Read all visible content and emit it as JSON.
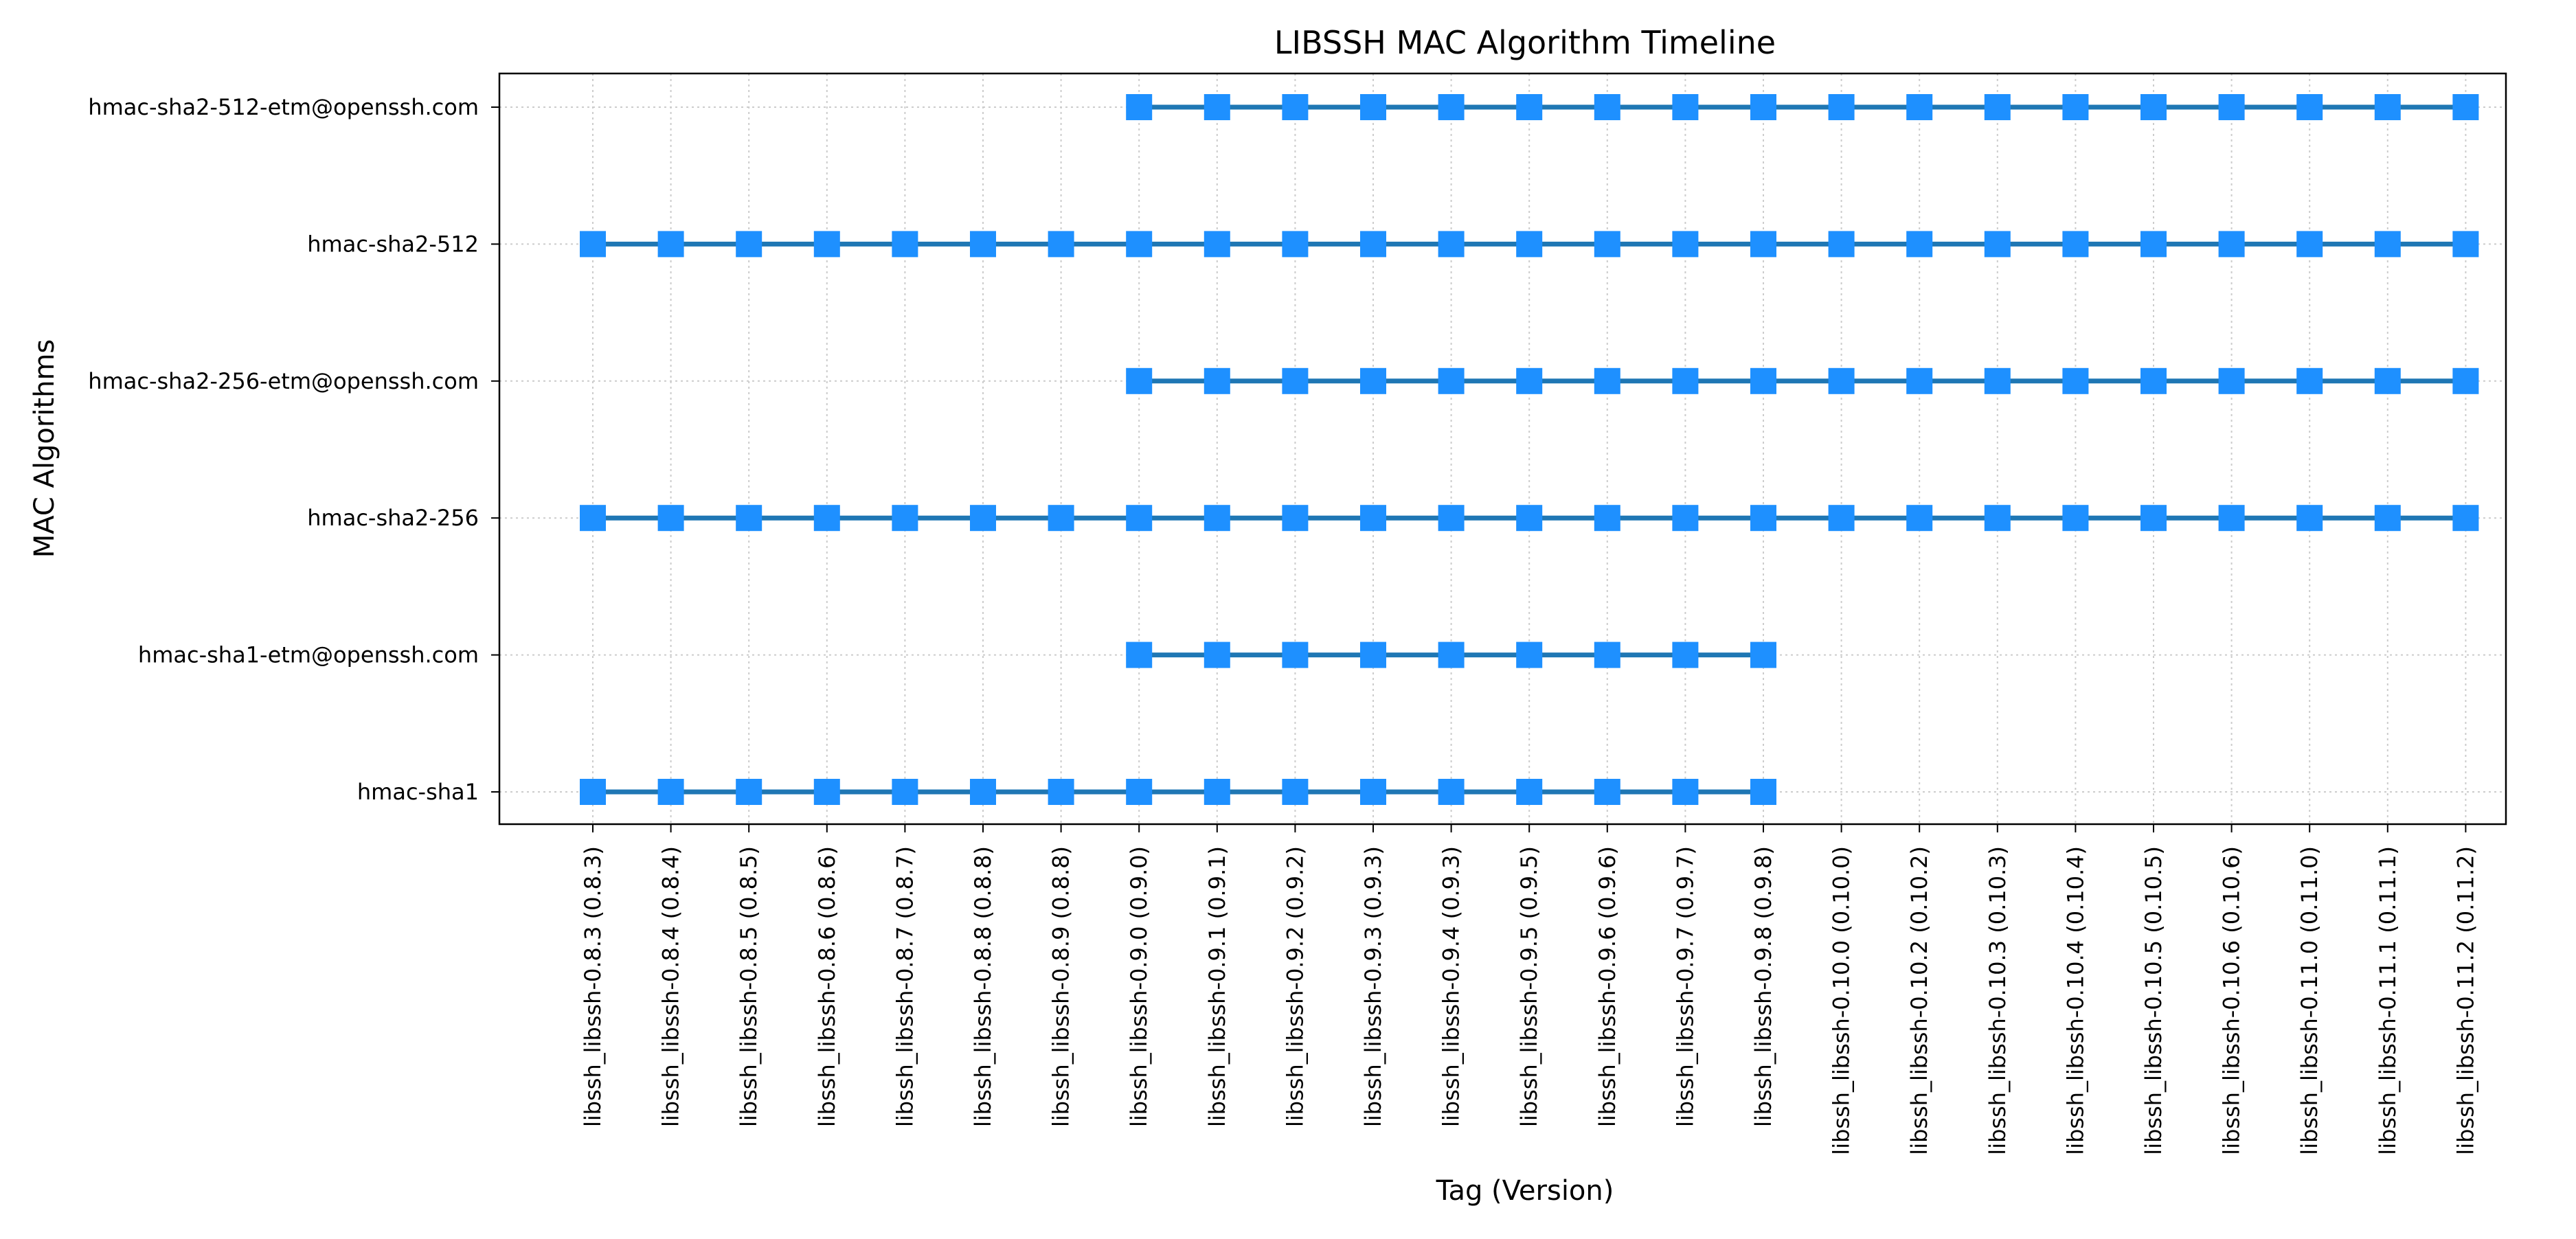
{
  "chart_data": {
    "type": "line",
    "title": "LIBSSH MAC Algorithm Timeline",
    "xlabel": "Tag (Version)",
    "ylabel": "MAC Algorithms",
    "grid": true,
    "categories": [
      "libssh_libssh-0.8.3 (0.8.3)",
      "libssh_libssh-0.8.4 (0.8.4)",
      "libssh_libssh-0.8.5 (0.8.5)",
      "libssh_libssh-0.8.6 (0.8.6)",
      "libssh_libssh-0.8.7 (0.8.7)",
      "libssh_libssh-0.8.8 (0.8.8)",
      "libssh_libssh-0.8.9 (0.8.8)",
      "libssh_libssh-0.9.0 (0.9.0)",
      "libssh_libssh-0.9.1 (0.9.1)",
      "libssh_libssh-0.9.2 (0.9.2)",
      "libssh_libssh-0.9.3 (0.9.3)",
      "libssh_libssh-0.9.4 (0.9.3)",
      "libssh_libssh-0.9.5 (0.9.5)",
      "libssh_libssh-0.9.6 (0.9.6)",
      "libssh_libssh-0.9.7 (0.9.7)",
      "libssh_libssh-0.9.8 (0.9.8)",
      "libssh_libssh-0.10.0 (0.10.0)",
      "libssh_libssh-0.10.2 (0.10.2)",
      "libssh_libssh-0.10.3 (0.10.3)",
      "libssh_libssh-0.10.4 (0.10.4)",
      "libssh_libssh-0.10.5 (0.10.5)",
      "libssh_libssh-0.10.6 (0.10.6)",
      "libssh_libssh-0.11.0 (0.11.0)",
      "libssh_libssh-0.11.1 (0.11.1)",
      "libssh_libssh-0.11.2 (0.11.2)"
    ],
    "y_categories": [
      "hmac-sha1",
      "hmac-sha1-etm@openssh.com",
      "hmac-sha2-256",
      "hmac-sha2-256-etm@openssh.com",
      "hmac-sha2-512",
      "hmac-sha2-512-etm@openssh.com"
    ],
    "series": [
      {
        "y": "hmac-sha1",
        "x_range": [
          0,
          15
        ]
      },
      {
        "y": "hmac-sha1-etm@openssh.com",
        "x_range": [
          7,
          15
        ]
      },
      {
        "y": "hmac-sha2-256",
        "x_range": [
          0,
          24
        ]
      },
      {
        "y": "hmac-sha2-256-etm@openssh.com",
        "x_range": [
          7,
          24
        ]
      },
      {
        "y": "hmac-sha2-512",
        "x_range": [
          0,
          24
        ]
      },
      {
        "y": "hmac-sha2-512-etm@openssh.com",
        "x_range": [
          7,
          24
        ]
      }
    ],
    "colors": {
      "line": "#1f77b4",
      "marker": "#1e90ff",
      "grid": "#cccccc"
    },
    "marker_shape": "square"
  }
}
